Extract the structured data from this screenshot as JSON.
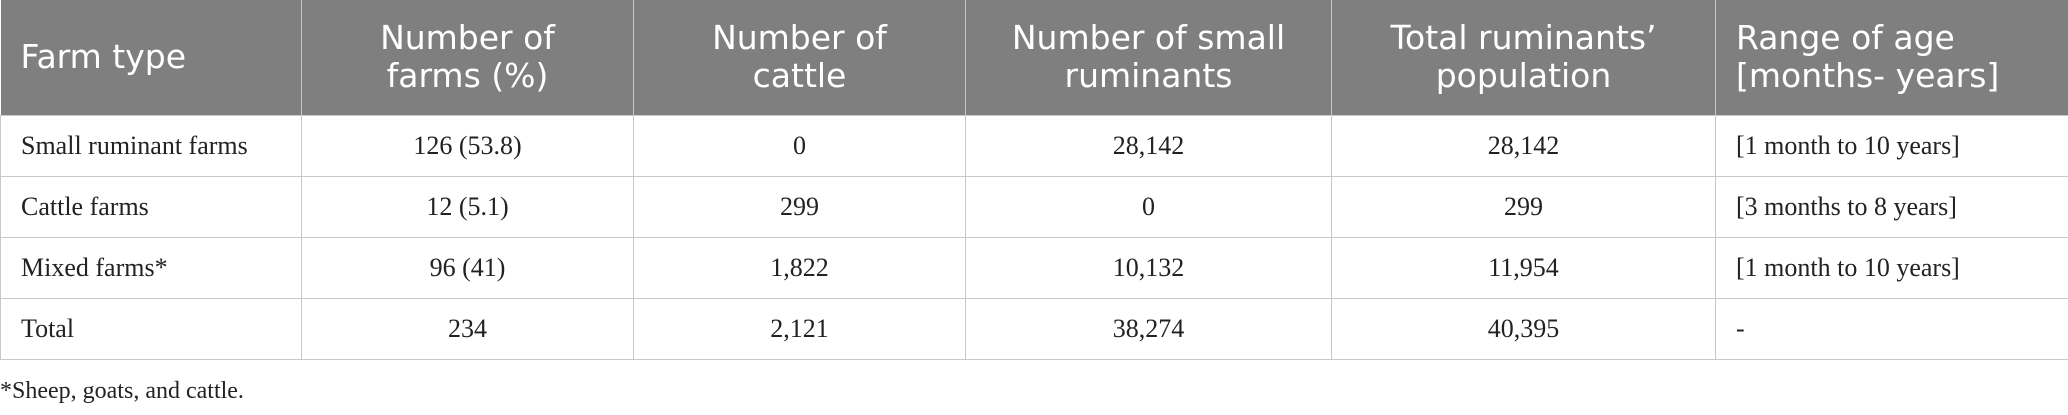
{
  "table": {
    "header": [
      "Farm type",
      "Number of farms (%)",
      "Number of cattle",
      "Number of small ruminants",
      "Total ruminants’ population",
      "Range of age [months- years]"
    ],
    "rows": [
      [
        "Small ruminant farms",
        "126 (53.8)",
        "0",
        "28,142",
        "28,142",
        "[1 month to 10 years]"
      ],
      [
        "Cattle farms",
        "12 (5.1)",
        "299",
        "0",
        "299",
        "[3 months to 8 years]"
      ],
      [
        "Mixed farms*",
        "96 (41)",
        "1,822",
        "10,132",
        "11,954",
        "[1 month to 10 years]"
      ],
      [
        "Total",
        "234",
        "2,121",
        "38,274",
        "40,395",
        "-"
      ]
    ]
  },
  "footnote": "*Sheep, goats, and cattle."
}
